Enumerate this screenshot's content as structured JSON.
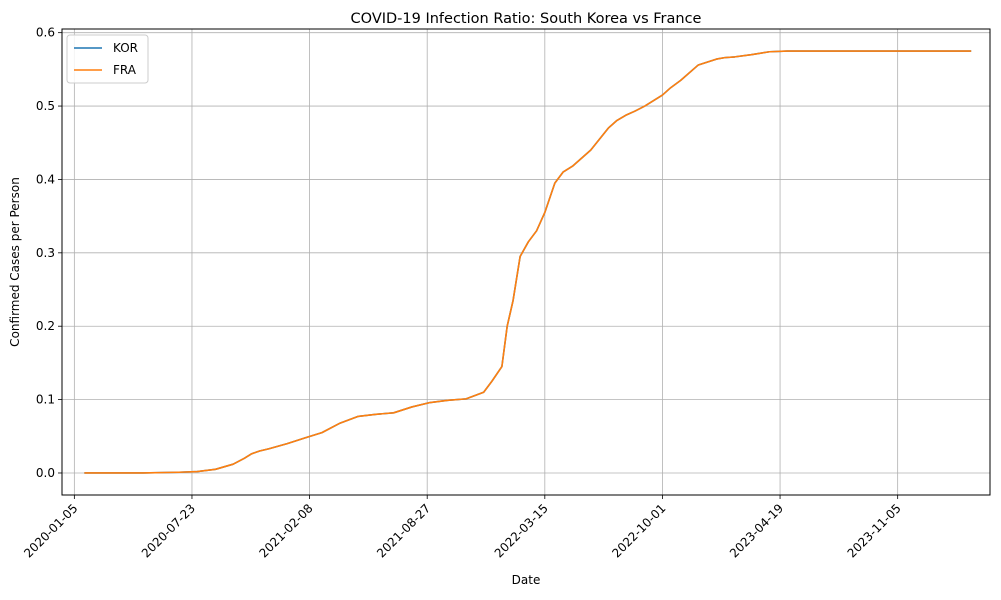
{
  "chart_data": {
    "type": "line",
    "title": "COVID-19 Infection Ratio: South Korea vs France",
    "xlabel": "Date",
    "ylabel": "Confirmed Cases per Person",
    "xlim": [
      "2019-12-15",
      "2024-04-10"
    ],
    "ylim": [
      -0.03,
      0.605
    ],
    "x_ticks": [
      "2020-01-05",
      "2020-07-23",
      "2021-02-08",
      "2021-08-27",
      "2022-03-15",
      "2022-10-01",
      "2023-04-19",
      "2023-11-05",
      "2024-05-23"
    ],
    "x_tick_labels": [
      "2020-01-05",
      "2020-07-23",
      "2021-02-08",
      "2021-08-27",
      "2022-03-15",
      "2022-10-01",
      "2023-04-19",
      "2023-11-05",
      ""
    ],
    "y_ticks": [
      0.0,
      0.1,
      0.2,
      0.3,
      0.4,
      0.5,
      0.6
    ],
    "y_tick_labels": [
      "0.0",
      "0.1",
      "0.2",
      "0.3",
      "0.4",
      "0.5",
      "0.6"
    ],
    "grid": true,
    "legend_position": "top-left",
    "colors": {
      "KOR": "#1f77b4",
      "FRA": "#ff7f0e"
    },
    "series": [
      {
        "name": "KOR",
        "x": [
          "2020-01-22",
          "2020-03-01",
          "2020-05-01",
          "2020-07-01",
          "2020-08-01",
          "2020-09-01",
          "2020-10-01",
          "2020-10-20",
          "2020-11-01",
          "2020-11-15",
          "2020-12-01",
          "2021-01-01",
          "2021-02-01",
          "2021-03-01",
          "2021-04-01",
          "2021-05-01",
          "2021-06-01",
          "2021-07-01",
          "2021-08-01",
          "2021-09-01",
          "2021-10-01",
          "2021-11-01",
          "2021-12-01",
          "2021-12-15",
          "2022-01-01",
          "2022-01-10",
          "2022-01-20",
          "2022-02-01",
          "2022-02-15",
          "2022-03-01",
          "2022-03-15",
          "2022-04-01",
          "2022-04-15",
          "2022-05-01",
          "2022-06-01",
          "2022-07-01",
          "2022-07-15",
          "2022-08-01",
          "2022-08-15",
          "2022-09-01",
          "2022-10-01",
          "2022-10-15",
          "2022-11-01",
          "2022-12-01",
          "2023-01-01",
          "2023-01-15",
          "2023-02-01",
          "2023-03-01",
          "2023-04-01",
          "2023-05-01",
          "2023-06-01",
          "2024-03-09"
        ],
        "values": [
          0.0,
          0.0,
          0.0,
          0.001,
          0.002,
          0.005,
          0.012,
          0.02,
          0.026,
          0.03,
          0.033,
          0.04,
          0.048,
          0.055,
          0.068,
          0.077,
          0.08,
          0.082,
          0.09,
          0.096,
          0.099,
          0.101,
          0.11,
          0.125,
          0.145,
          0.2,
          0.235,
          0.295,
          0.315,
          0.33,
          0.355,
          0.395,
          0.41,
          0.418,
          0.44,
          0.47,
          0.48,
          0.488,
          0.493,
          0.5,
          0.515,
          0.525,
          0.535,
          0.556,
          0.564,
          0.566,
          0.567,
          0.57,
          0.574,
          0.575,
          0.575,
          0.575
        ]
      },
      {
        "name": "FRA",
        "x": [
          "2020-01-22",
          "2020-03-01",
          "2020-05-01",
          "2020-07-01",
          "2020-08-01",
          "2020-09-01",
          "2020-10-01",
          "2020-10-20",
          "2020-11-01",
          "2020-11-15",
          "2020-12-01",
          "2021-01-01",
          "2021-02-01",
          "2021-03-01",
          "2021-04-01",
          "2021-05-01",
          "2021-06-01",
          "2021-07-01",
          "2021-08-01",
          "2021-09-01",
          "2021-10-01",
          "2021-11-01",
          "2021-12-01",
          "2021-12-15",
          "2022-01-01",
          "2022-01-10",
          "2022-01-20",
          "2022-02-01",
          "2022-02-15",
          "2022-03-01",
          "2022-03-15",
          "2022-04-01",
          "2022-04-15",
          "2022-05-01",
          "2022-06-01",
          "2022-07-01",
          "2022-07-15",
          "2022-08-01",
          "2022-08-15",
          "2022-09-01",
          "2022-10-01",
          "2022-10-15",
          "2022-11-01",
          "2022-12-01",
          "2023-01-01",
          "2023-01-15",
          "2023-02-01",
          "2023-03-01",
          "2023-04-01",
          "2023-05-01",
          "2023-06-01",
          "2024-03-09"
        ],
        "values": [
          0.0,
          0.0,
          0.0,
          0.001,
          0.002,
          0.005,
          0.012,
          0.02,
          0.026,
          0.03,
          0.033,
          0.04,
          0.048,
          0.055,
          0.068,
          0.077,
          0.08,
          0.082,
          0.09,
          0.096,
          0.099,
          0.101,
          0.11,
          0.125,
          0.145,
          0.2,
          0.235,
          0.295,
          0.315,
          0.33,
          0.355,
          0.395,
          0.41,
          0.418,
          0.44,
          0.47,
          0.48,
          0.488,
          0.493,
          0.5,
          0.515,
          0.525,
          0.535,
          0.556,
          0.564,
          0.566,
          0.567,
          0.57,
          0.574,
          0.575,
          0.575,
          0.575
        ]
      }
    ]
  }
}
